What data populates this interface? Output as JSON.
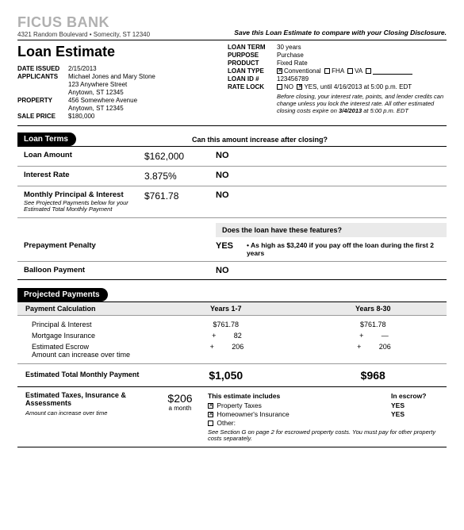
{
  "bank": {
    "name": "FICUS BANK",
    "address": "4321 Random Boulevard • Somecity, ST 12340"
  },
  "saveNote": "Save this Loan Estimate to compare with your Closing Disclosure.",
  "title": "Loan Estimate",
  "left": {
    "dateIssued": "2/15/2013",
    "applicants": "Michael Jones and Mary Stone",
    "appAddr1": "123 Anywhere Street",
    "appAddr2": "Anytown, ST 12345",
    "property1": "456 Somewhere Avenue",
    "property2": "Anytown, ST 12345",
    "salePrice": "$180,000"
  },
  "right": {
    "loanTerm": "30 years",
    "purpose": "Purchase",
    "product": "Fixed Rate",
    "loanType": {
      "conv": true,
      "fha": false,
      "va": false,
      "other": ""
    },
    "loanId": "123456789",
    "rateLock": {
      "no": false,
      "yes": true,
      "until": "until 4/16/2013 at 5:00 p.m. EDT"
    },
    "note": "Before closing, your interest rate, points, and lender credits can change unless you lock the interest rate. All other estimated closing costs expire on",
    "noteBold": "3/4/2013",
    "noteEnd": "at 5:00 p.m. EDT"
  },
  "loanTerms": {
    "title": "Loan Terms",
    "q": "Can this amount increase after closing?",
    "rows": [
      {
        "label": "Loan Amount",
        "value": "$162,000",
        "ans": "NO"
      },
      {
        "label": "Interest Rate",
        "value": "3.875%",
        "ans": "NO"
      },
      {
        "label": "Monthly Principal & Interest",
        "sub": "See Projected Payments below for your Estimated Total Monthly Payment",
        "value": "$761.78",
        "ans": "NO"
      }
    ],
    "q2": "Does the loan have these features?",
    "rows2": [
      {
        "label": "Prepayment Penalty",
        "ans": "YES",
        "det": "• As high as $3,240 if you pay off the loan during the first 2 years"
      },
      {
        "label": "Balloon Payment",
        "ans": "NO"
      }
    ]
  },
  "proj": {
    "title": "Projected Payments",
    "calcLabel": "Payment Calculation",
    "col1": "Years 1-7",
    "col2": "Years 8-30",
    "pi": {
      "label": "Principal & Interest",
      "v1": "$761.78",
      "v2": "$761.78"
    },
    "mi": {
      "label": "Mortgage Insurance",
      "v1": "82",
      "v2": "—"
    },
    "esc": {
      "label": "Estimated Escrow",
      "sub": "Amount can increase over time",
      "v1": "206",
      "v2": "206"
    },
    "tot": {
      "label": "Estimated Total Monthly Payment",
      "v1": "$1,050",
      "v2": "$968"
    }
  },
  "assess": {
    "label": "Estimated Taxes, Insurance & Assessments",
    "sub": "Amount can increase over time",
    "val": "$206",
    "per": "a month",
    "incLabel": "This estimate includes",
    "escLabel": "In escrow?",
    "items": [
      {
        "chk": true,
        "label": "Property Taxes",
        "esc": "YES"
      },
      {
        "chk": true,
        "label": "Homeowner's Insurance",
        "esc": "YES"
      },
      {
        "chk": false,
        "label": "Other:",
        "esc": ""
      }
    ],
    "foot": "See Section G on page 2 for escrowed property costs. You must pay for other property costs separately."
  },
  "labels": {
    "dateIssued": "DATE ISSUED",
    "applicants": "APPLICANTS",
    "property": "PROPERTY",
    "salePrice": "SALE PRICE",
    "loanTerm": "LOAN TERM",
    "purpose": "PURPOSE",
    "product": "PRODUCT",
    "loanType": "LOAN TYPE",
    "loanId": "LOAN ID #",
    "rateLock": "RATE LOCK",
    "conv": "Conventional",
    "fha": "FHA",
    "va": "VA",
    "no": "NO",
    "yes": "YES,"
  }
}
